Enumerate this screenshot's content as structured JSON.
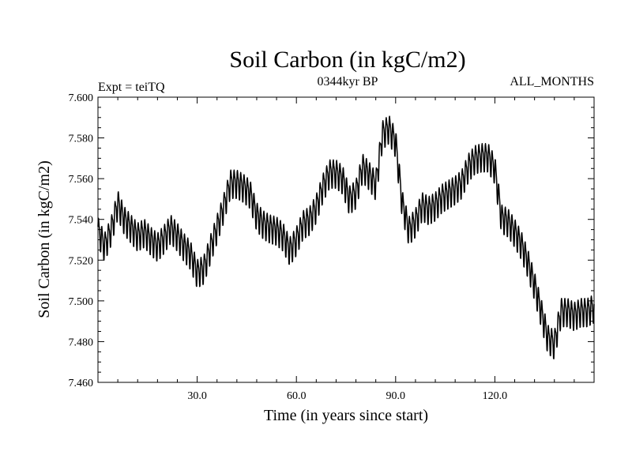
{
  "chart_data": {
    "type": "line",
    "title": "Soil Carbon (in kgC/m2)",
    "subtitle_left": "Expt = teiTQ",
    "subtitle_center": "0344kyr BP",
    "subtitle_right": "ALL_MONTHS",
    "xlabel": "Time (in years since start)",
    "ylabel": "Soil Carbon (in kgC/m2)",
    "xlim": [
      0,
      150
    ],
    "ylim": [
      7.46,
      7.6
    ],
    "xticks": [
      30,
      60,
      90,
      120
    ],
    "xtick_labels": [
      "30.0",
      "60.0",
      "90.0",
      "120.0"
    ],
    "yticks": [
      7.46,
      7.48,
      7.5,
      7.52,
      7.54,
      7.56,
      7.58,
      7.6
    ],
    "ytick_labels": [
      "7.460",
      "7.480",
      "7.500",
      "7.520",
      "7.540",
      "7.560",
      "7.580",
      "7.600"
    ],
    "grid": false,
    "series": [
      {
        "name": "Soil Carbon",
        "color": "#000000",
        "x": [
          0,
          2,
          4,
          6,
          8,
          10,
          12,
          14,
          16,
          18,
          20,
          22,
          24,
          26,
          28,
          30,
          32,
          34,
          36,
          38,
          40,
          42,
          44,
          46,
          48,
          50,
          52,
          54,
          56,
          58,
          60,
          62,
          64,
          66,
          68,
          70,
          72,
          74,
          76,
          78,
          80,
          82,
          84,
          86,
          88,
          90,
          92,
          94,
          96,
          98,
          100,
          102,
          104,
          106,
          108,
          110,
          112,
          114,
          116,
          118,
          120,
          122,
          124,
          126,
          128,
          130,
          132,
          134,
          136,
          138,
          140,
          142,
          144,
          146,
          148,
          150
        ],
        "values": [
          7.535,
          7.527,
          7.535,
          7.548,
          7.54,
          7.536,
          7.532,
          7.534,
          7.53,
          7.527,
          7.531,
          7.536,
          7.532,
          7.527,
          7.523,
          7.514,
          7.516,
          7.526,
          7.536,
          7.546,
          7.558,
          7.558,
          7.556,
          7.553,
          7.542,
          7.538,
          7.536,
          7.535,
          7.532,
          7.525,
          7.53,
          7.538,
          7.54,
          7.546,
          7.556,
          7.563,
          7.563,
          7.56,
          7.55,
          7.553,
          7.566,
          7.562,
          7.557,
          7.582,
          7.585,
          7.578,
          7.548,
          7.535,
          7.539,
          7.547,
          7.545,
          7.547,
          7.551,
          7.553,
          7.555,
          7.558,
          7.566,
          7.57,
          7.571,
          7.571,
          7.565,
          7.541,
          7.539,
          7.534,
          7.528,
          7.519,
          7.508,
          7.495,
          7.482,
          7.479,
          7.495,
          7.495,
          7.493,
          7.495,
          7.495,
          7.497
        ]
      }
    ]
  }
}
